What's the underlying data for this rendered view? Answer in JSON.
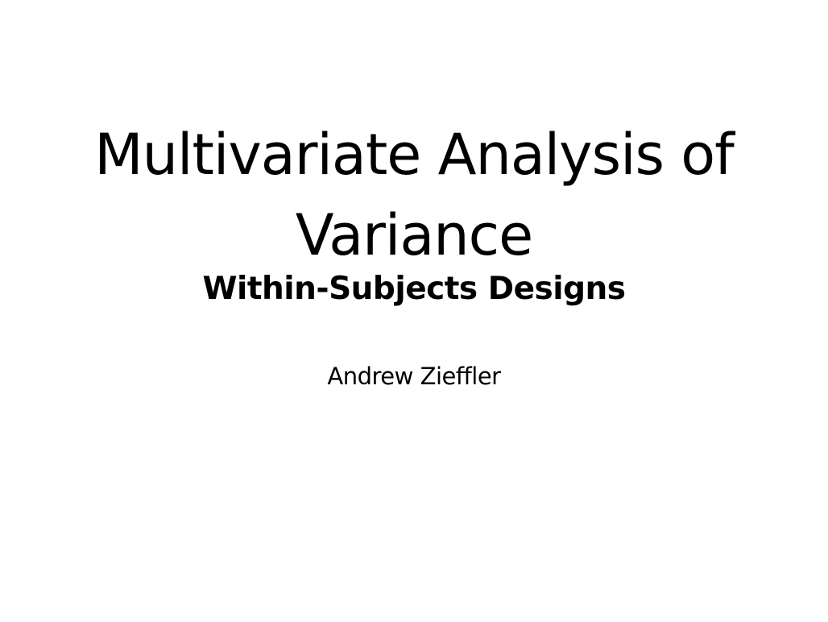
{
  "slide": {
    "title_line1": "Multivariate Analysis of",
    "title_line2": "Variance",
    "subtitle": "Within-Subjects Designs",
    "author": "Andrew Zieffler"
  }
}
